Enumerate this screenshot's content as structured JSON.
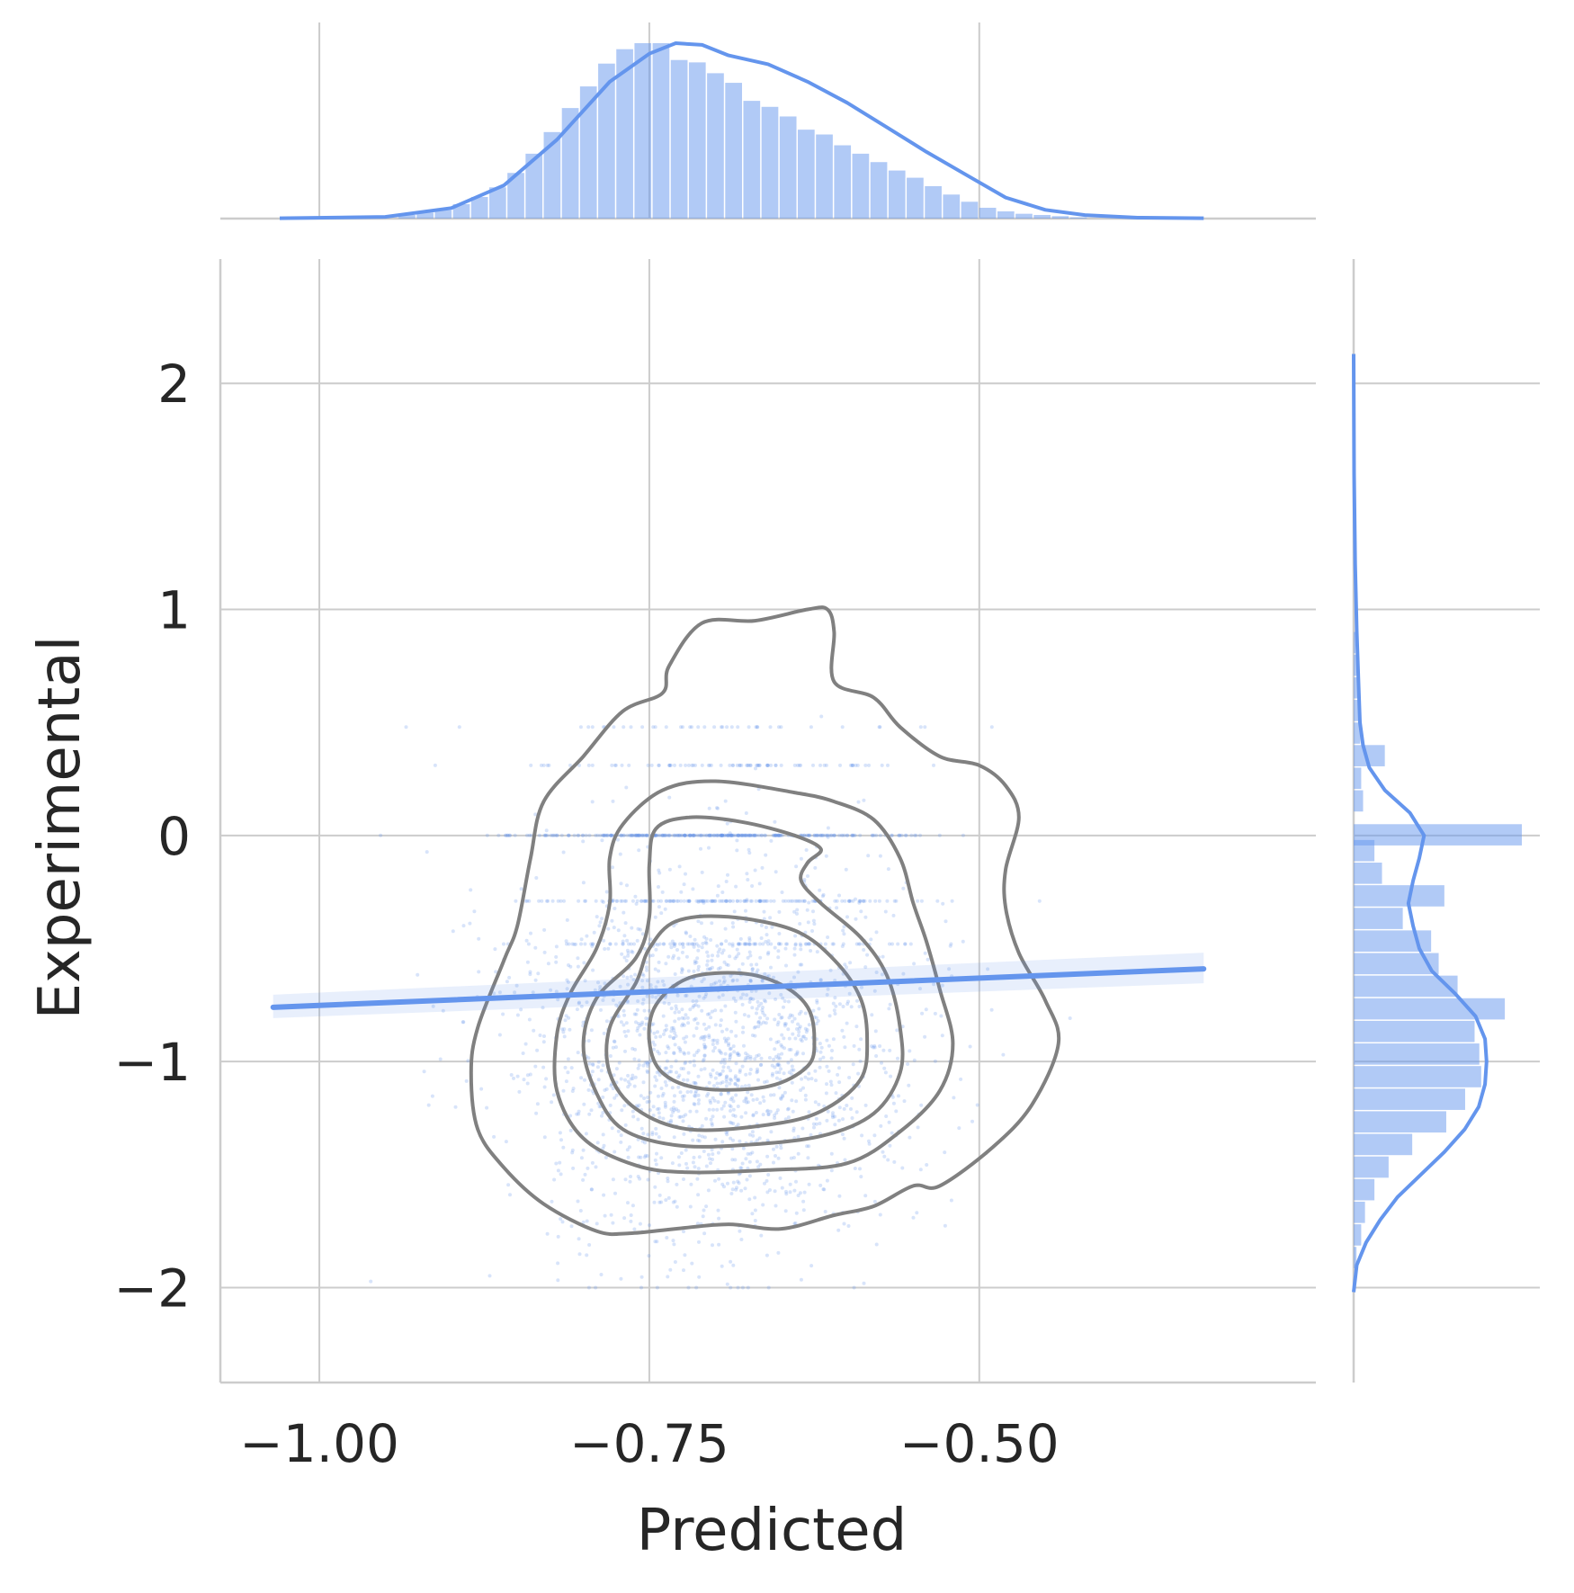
{
  "chart_data": {
    "type": "scatter",
    "xlabel": "Predicted",
    "ylabel": "Experimental",
    "xlim": [
      -1.075,
      -0.245
    ],
    "ylim": [
      -2.42,
      2.55
    ],
    "x_ticks": [
      -1.0,
      -0.75,
      -0.5
    ],
    "x_tick_labels": [
      "−1.00",
      "−0.75",
      "−0.50"
    ],
    "y_ticks": [
      2,
      1,
      0,
      -1,
      -2
    ],
    "y_tick_labels": [
      "2",
      "1",
      "0",
      "−1",
      "−2"
    ],
    "grid": true,
    "color": "#6495ed",
    "contour_color": "#808080",
    "scatter_summary": {
      "approx_points": 2500,
      "x_range": [
        -1.03,
        -0.33
      ],
      "y_range": [
        -2.0,
        2.13
      ],
      "center": [
        -0.7,
        -0.95
      ],
      "y_concentrations": [
        0.0,
        -0.29,
        0.31,
        -0.48,
        0.48
      ]
    },
    "regression_line": {
      "x": [
        -1.035,
        -0.33
      ],
      "y": [
        -0.76,
        -0.59
      ]
    },
    "kde_contours": [
      {
        "level": 1,
        "points": [
          [
            -0.71,
            0.94
          ],
          [
            -0.67,
            0.95
          ],
          [
            -0.63,
            1.0
          ],
          [
            -0.615,
            1.0
          ],
          [
            -0.61,
            0.9
          ],
          [
            -0.61,
            0.68
          ],
          [
            -0.58,
            0.61
          ],
          [
            -0.56,
            0.48
          ],
          [
            -0.53,
            0.35
          ],
          [
            -0.5,
            0.31
          ],
          [
            -0.48,
            0.22
          ],
          [
            -0.47,
            0.08
          ],
          [
            -0.48,
            -0.15
          ],
          [
            -0.48,
            -0.32
          ],
          [
            -0.47,
            -0.52
          ],
          [
            -0.45,
            -0.73
          ],
          [
            -0.44,
            -0.92
          ],
          [
            -0.46,
            -1.19
          ],
          [
            -0.49,
            -1.38
          ],
          [
            -0.53,
            -1.55
          ],
          [
            -0.55,
            -1.55
          ],
          [
            -0.58,
            -1.64
          ],
          [
            -0.61,
            -1.68
          ],
          [
            -0.65,
            -1.74
          ],
          [
            -0.69,
            -1.72
          ],
          [
            -0.73,
            -1.74
          ],
          [
            -0.765,
            -1.76
          ],
          [
            -0.79,
            -1.75
          ],
          [
            -0.83,
            -1.63
          ],
          [
            -0.86,
            -1.47
          ],
          [
            -0.88,
            -1.3
          ],
          [
            -0.885,
            -1.05
          ],
          [
            -0.88,
            -0.85
          ],
          [
            -0.86,
            -0.55
          ],
          [
            -0.85,
            -0.4
          ],
          [
            -0.84,
            -0.1
          ],
          [
            -0.83,
            0.15
          ],
          [
            -0.8,
            0.35
          ],
          [
            -0.77,
            0.55
          ],
          [
            -0.74,
            0.63
          ],
          [
            -0.735,
            0.75
          ]
        ]
      },
      {
        "level": 2,
        "points": [
          [
            -0.74,
            0.2
          ],
          [
            -0.7,
            0.24
          ],
          [
            -0.64,
            0.19
          ],
          [
            -0.61,
            0.15
          ],
          [
            -0.58,
            0.07
          ],
          [
            -0.56,
            -0.1
          ],
          [
            -0.55,
            -0.3
          ],
          [
            -0.54,
            -0.47
          ],
          [
            -0.53,
            -0.68
          ],
          [
            -0.52,
            -0.92
          ],
          [
            -0.53,
            -1.13
          ],
          [
            -0.56,
            -1.31
          ],
          [
            -0.6,
            -1.45
          ],
          [
            -0.66,
            -1.48
          ],
          [
            -0.72,
            -1.49
          ],
          [
            -0.76,
            -1.46
          ],
          [
            -0.8,
            -1.34
          ],
          [
            -0.82,
            -1.13
          ],
          [
            -0.82,
            -0.88
          ],
          [
            -0.81,
            -0.7
          ],
          [
            -0.79,
            -0.5
          ],
          [
            -0.78,
            -0.3
          ],
          [
            -0.78,
            -0.1
          ],
          [
            -0.77,
            0.05
          ]
        ]
      },
      {
        "level": 3,
        "points": [
          [
            -0.72,
            0.08
          ],
          [
            -0.68,
            0.06
          ],
          [
            -0.64,
            0.0
          ],
          [
            -0.62,
            -0.06
          ],
          [
            -0.63,
            -0.12
          ],
          [
            -0.635,
            -0.2
          ],
          [
            -0.62,
            -0.3
          ],
          [
            -0.59,
            -0.45
          ],
          [
            -0.57,
            -0.62
          ],
          [
            -0.56,
            -0.85
          ],
          [
            -0.56,
            -1.05
          ],
          [
            -0.58,
            -1.23
          ],
          [
            -0.62,
            -1.33
          ],
          [
            -0.68,
            -1.37
          ],
          [
            -0.73,
            -1.37
          ],
          [
            -0.77,
            -1.3
          ],
          [
            -0.79,
            -1.14
          ],
          [
            -0.8,
            -0.93
          ],
          [
            -0.79,
            -0.72
          ],
          [
            -0.76,
            -0.54
          ],
          [
            -0.75,
            -0.36
          ],
          [
            -0.75,
            -0.13
          ],
          [
            -0.745,
            0.03
          ]
        ]
      },
      {
        "level": 4,
        "points": [
          [
            -0.73,
            -0.38
          ],
          [
            -0.69,
            -0.36
          ],
          [
            -0.64,
            -0.42
          ],
          [
            -0.61,
            -0.55
          ],
          [
            -0.59,
            -0.72
          ],
          [
            -0.585,
            -0.9
          ],
          [
            -0.59,
            -1.08
          ],
          [
            -0.62,
            -1.22
          ],
          [
            -0.66,
            -1.28
          ],
          [
            -0.72,
            -1.3
          ],
          [
            -0.76,
            -1.21
          ],
          [
            -0.78,
            -1.05
          ],
          [
            -0.78,
            -0.85
          ],
          [
            -0.76,
            -0.65
          ],
          [
            -0.75,
            -0.5
          ]
        ]
      },
      {
        "level": 5,
        "points": [
          [
            -0.72,
            -0.63
          ],
          [
            -0.68,
            -0.61
          ],
          [
            -0.65,
            -0.66
          ],
          [
            -0.63,
            -0.76
          ],
          [
            -0.625,
            -0.9
          ],
          [
            -0.63,
            -1.02
          ],
          [
            -0.66,
            -1.11
          ],
          [
            -0.71,
            -1.12
          ],
          [
            -0.74,
            -1.05
          ],
          [
            -0.75,
            -0.91
          ],
          [
            -0.745,
            -0.75
          ]
        ]
      }
    ],
    "marginal_x": {
      "bin_edges_start": -0.94,
      "bin_width": 0.01375,
      "counts": [
        3,
        5,
        7,
        12,
        18,
        26,
        38,
        54,
        72,
        92,
        110,
        129,
        141,
        146,
        146,
        132,
        130,
        121,
        113,
        98,
        93,
        85,
        74,
        70,
        61,
        54,
        47,
        40,
        34,
        27,
        20,
        14,
        9,
        6,
        4,
        3,
        2,
        1
      ],
      "kde": [
        [
          -1.03,
          0.002
        ],
        [
          -0.95,
          0.01
        ],
        [
          -0.9,
          0.06
        ],
        [
          -0.86,
          0.19
        ],
        [
          -0.82,
          0.45
        ],
        [
          -0.78,
          0.78
        ],
        [
          -0.75,
          0.94
        ],
        [
          -0.73,
          1.0
        ],
        [
          -0.71,
          0.99
        ],
        [
          -0.69,
          0.93
        ],
        [
          -0.66,
          0.88
        ],
        [
          -0.63,
          0.78
        ],
        [
          -0.6,
          0.66
        ],
        [
          -0.57,
          0.52
        ],
        [
          -0.54,
          0.38
        ],
        [
          -0.51,
          0.25
        ],
        [
          -0.48,
          0.12
        ],
        [
          -0.45,
          0.05
        ],
        [
          -0.42,
          0.02
        ],
        [
          -0.38,
          0.005
        ],
        [
          -0.33,
          0.002
        ]
      ]
    },
    "marginal_y": {
      "bins": [
        {
          "y0": -1.92,
          "y1": -1.82,
          "count": 3
        },
        {
          "y0": -1.82,
          "y1": -1.72,
          "count": 8
        },
        {
          "y0": -1.72,
          "y1": -1.62,
          "count": 12
        },
        {
          "y0": -1.62,
          "y1": -1.52,
          "count": 22
        },
        {
          "y0": -1.52,
          "y1": -1.42,
          "count": 37
        },
        {
          "y0": -1.42,
          "y1": -1.32,
          "count": 62
        },
        {
          "y0": -1.32,
          "y1": -1.22,
          "count": 98
        },
        {
          "y0": -1.22,
          "y1": -1.12,
          "count": 118
        },
        {
          "y0": -1.12,
          "y1": -1.02,
          "count": 135
        },
        {
          "y0": -1.02,
          "y1": -0.92,
          "count": 133
        },
        {
          "y0": -0.92,
          "y1": -0.82,
          "count": 128
        },
        {
          "y0": -0.82,
          "y1": -0.72,
          "count": 160
        },
        {
          "y0": -0.72,
          "y1": -0.62,
          "count": 110
        },
        {
          "y0": -0.62,
          "y1": -0.52,
          "count": 90
        },
        {
          "y0": -0.52,
          "y1": -0.42,
          "count": 82
        },
        {
          "y0": -0.42,
          "y1": -0.32,
          "count": 52
        },
        {
          "y0": -0.32,
          "y1": -0.22,
          "count": 96
        },
        {
          "y0": -0.22,
          "y1": -0.12,
          "count": 30
        },
        {
          "y0": -0.12,
          "y1": -0.02,
          "count": 22
        },
        {
          "y0": -0.05,
          "y1": 0.05,
          "count": 178
        },
        {
          "y0": 0.1,
          "y1": 0.2,
          "count": 10
        },
        {
          "y0": 0.2,
          "y1": 0.3,
          "count": 8
        },
        {
          "y0": 0.3,
          "y1": 0.4,
          "count": 33
        },
        {
          "y0": 0.4,
          "y1": 0.5,
          "count": 7
        },
        {
          "y0": 0.5,
          "y1": 0.6,
          "count": 5
        },
        {
          "y0": 0.6,
          "y1": 0.7,
          "count": 4
        },
        {
          "y0": 0.7,
          "y1": 0.8,
          "count": 3
        },
        {
          "y0": 0.8,
          "y1": 0.9,
          "count": 2
        }
      ],
      "kde": [
        [
          -2.02,
          0.0
        ],
        [
          -1.9,
          0.02
        ],
        [
          -1.8,
          0.08
        ],
        [
          -1.7,
          0.17
        ],
        [
          -1.6,
          0.28
        ],
        [
          -1.5,
          0.43
        ],
        [
          -1.4,
          0.58
        ],
        [
          -1.3,
          0.71
        ],
        [
          -1.2,
          0.8
        ],
        [
          -1.1,
          0.84
        ],
        [
          -1.0,
          0.85
        ],
        [
          -0.9,
          0.84
        ],
        [
          -0.8,
          0.78
        ],
        [
          -0.7,
          0.65
        ],
        [
          -0.6,
          0.5
        ],
        [
          -0.5,
          0.42
        ],
        [
          -0.4,
          0.38
        ],
        [
          -0.3,
          0.35
        ],
        [
          -0.2,
          0.38
        ],
        [
          -0.1,
          0.42
        ],
        [
          0.0,
          0.45
        ],
        [
          0.1,
          0.36
        ],
        [
          0.2,
          0.2
        ],
        [
          0.3,
          0.1
        ],
        [
          0.4,
          0.06
        ],
        [
          0.5,
          0.04
        ],
        [
          0.7,
          0.03
        ],
        [
          0.9,
          0.02
        ],
        [
          1.2,
          0.01
        ],
        [
          1.6,
          0.003
        ],
        [
          2.13,
          0.0
        ]
      ]
    }
  }
}
